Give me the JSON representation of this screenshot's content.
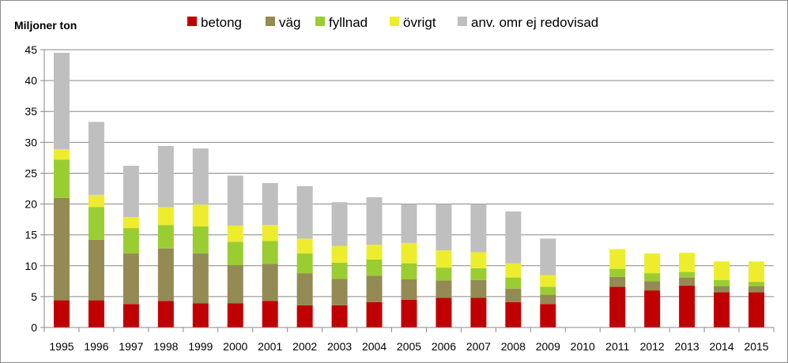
{
  "chart_data": {
    "type": "bar",
    "stacked": true,
    "ylabel": "Miljoner ton",
    "ylim": [
      0,
      45
    ],
    "yticks": [
      0,
      5,
      10,
      15,
      20,
      25,
      30,
      35,
      40,
      45
    ],
    "grid": true,
    "legend": "top",
    "categories": [
      "1995",
      "1996",
      "1997",
      "1998",
      "1999",
      "2000",
      "2001",
      "2002",
      "2003",
      "2004",
      "2005",
      "2006",
      "2007",
      "2008",
      "2009",
      "2010",
      "2011",
      "2012",
      "2013",
      "2014",
      "2015"
    ],
    "series": [
      {
        "name": "betong",
        "color": "#c00000",
        "values": [
          4.4,
          4.4,
          3.8,
          4.3,
          3.9,
          3.9,
          4.3,
          3.6,
          3.6,
          4.1,
          4.5,
          4.8,
          4.8,
          4.1,
          3.8,
          null,
          6.6,
          6.0,
          6.8,
          5.7,
          5.7
        ]
      },
      {
        "name": "väg",
        "color": "#948a54",
        "values": [
          16.6,
          9.8,
          8.2,
          8.5,
          8.1,
          6.2,
          6.0,
          5.2,
          4.3,
          4.3,
          3.3,
          2.8,
          2.9,
          2.2,
          1.5,
          null,
          1.6,
          1.5,
          1.3,
          1.0,
          1.0
        ]
      },
      {
        "name": "fyllnad",
        "color": "#9acd32",
        "values": [
          6.2,
          5.3,
          4.1,
          3.8,
          4.4,
          3.8,
          3.7,
          3.2,
          2.6,
          2.6,
          2.6,
          2.1,
          1.9,
          1.8,
          1.3,
          null,
          1.3,
          1.3,
          0.9,
          1.0,
          0.7
        ]
      },
      {
        "name": "övrigt",
        "color": "#eded2d",
        "values": [
          1.7,
          2.0,
          1.8,
          2.9,
          3.5,
          2.6,
          2.6,
          2.4,
          2.7,
          2.4,
          3.3,
          2.8,
          2.6,
          2.3,
          1.9,
          null,
          3.2,
          3.2,
          3.1,
          3.0,
          3.3
        ]
      },
      {
        "name": "anv. omr ej redovisad",
        "color": "#bfbfbf",
        "values": [
          15.6,
          11.8,
          8.3,
          9.9,
          9.1,
          8.1,
          6.8,
          8.5,
          7.1,
          7.7,
          6.3,
          7.5,
          7.8,
          8.4,
          5.9,
          null,
          0,
          0,
          0,
          0,
          0
        ]
      }
    ]
  }
}
